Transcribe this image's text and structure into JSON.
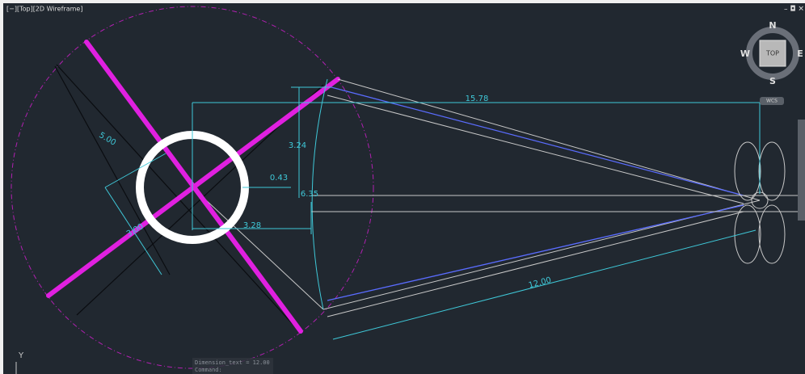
{
  "viewport": {
    "label": "[−][Top][2D Wireframe]"
  },
  "viewcube": {
    "north": "N",
    "south": "S",
    "east": "E",
    "west": "W",
    "face": "TOP",
    "ucs": "WCS"
  },
  "dimensions": [
    "15.78",
    "3.24",
    "5.00",
    "0.43",
    "6.35",
    "3.28",
    "3.00",
    "12.00"
  ],
  "ucs_icon": {
    "axis": "Y"
  },
  "command_line": {
    "history": "Dimension_text = 12.00",
    "prompt": "Command:"
  }
}
